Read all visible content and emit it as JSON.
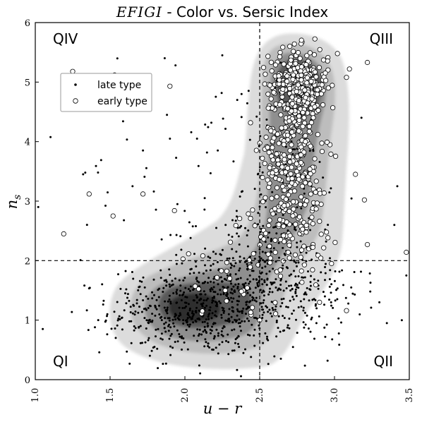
{
  "chart_data": {
    "type": "scatter",
    "title_italic": "EFIGI",
    "title_rest": " - Color vs. Sersic Index",
    "xlabel": "u − r",
    "ylabel": "n",
    "ylabel_sub": "s",
    "xlim": [
      1.0,
      3.5
    ],
    "ylim": [
      0,
      6
    ],
    "x_ticks": [
      "1.0",
      "1.5",
      "2.0",
      "2.5",
      "3.0",
      "3.5"
    ],
    "y_ticks": [
      "0",
      "1",
      "2",
      "3",
      "4",
      "5",
      "6"
    ],
    "reference_lines": {
      "x": 2.5,
      "y": 2.0
    },
    "quadrants": [
      {
        "label": "QIV",
        "position": "top-left"
      },
      {
        "label": "QIII",
        "position": "top-right"
      },
      {
        "label": "QI",
        "position": "bottom-left"
      },
      {
        "label": "QII",
        "position": "bottom-right"
      }
    ],
    "legend": {
      "placement": "upper-left",
      "entries": [
        "late type",
        "early type"
      ]
    },
    "density_levels": {
      "colors": [
        "#dcdcdc",
        "#bdbdbd",
        "#8f8f8f",
        "#5a5a5a",
        "#2e2e2e"
      ],
      "late_peak": [
        2.1,
        1.1
      ],
      "early_peak": [
        2.75,
        4.9
      ]
    },
    "series": [
      {
        "name": "late type",
        "marker": "dot",
        "color": "#000000",
        "clusters": [
          {
            "center": [
              2.1,
              1.15
            ],
            "spread": [
              0.3,
              0.38
            ],
            "count": 560
          },
          {
            "center": [
              2.45,
              1.9
            ],
            "spread": [
              0.2,
              0.45
            ],
            "count": 180
          },
          {
            "center": [
              2.75,
              1.5
            ],
            "spread": [
              0.22,
              0.45
            ],
            "count": 160
          },
          {
            "center": [
              2.7,
              3.4
            ],
            "spread": [
              0.12,
              1.1
            ],
            "count": 110
          },
          {
            "center": [
              2.2,
              2.5
            ],
            "spread": [
              0.55,
              1.4
            ],
            "count": 120
          }
        ],
        "points": [
          [
            1.02,
            2.9
          ],
          [
            1.05,
            0.85
          ],
          [
            1.32,
            3.45
          ],
          [
            1.55,
            5.1
          ],
          [
            1.65,
            3.25
          ],
          [
            1.72,
            3.85
          ],
          [
            1.88,
            4.45
          ],
          [
            1.9,
            4.05
          ],
          [
            1.95,
            2.95
          ],
          [
            2.25,
            5.45
          ],
          [
            2.22,
            3.85
          ],
          [
            2.35,
            4.7
          ],
          [
            3.18,
            4.4
          ],
          [
            3.4,
            2.6
          ],
          [
            3.45,
            1.0
          ],
          [
            3.48,
            1.75
          ],
          [
            3.3,
            1.3
          ],
          [
            3.35,
            0.95
          ],
          [
            3.42,
            3.25
          ]
        ]
      },
      {
        "name": "early type",
        "marker": "open-circle",
        "color": "#ffffff",
        "clusters": [
          {
            "center": [
              2.76,
              4.95
            ],
            "spread": [
              0.1,
              0.3
            ],
            "count": 300
          },
          {
            "center": [
              2.72,
              3.8
            ],
            "spread": [
              0.1,
              0.55
            ],
            "count": 230
          },
          {
            "center": [
              2.7,
              2.7
            ],
            "spread": [
              0.12,
              0.45
            ],
            "count": 120
          },
          {
            "center": [
              2.35,
              1.7
            ],
            "spread": [
              0.18,
              0.35
            ],
            "count": 28
          }
        ],
        "points": [
          [
            1.25,
            5.18
          ],
          [
            1.53,
            5.12
          ],
          [
            1.9,
            4.93
          ],
          [
            1.36,
            3.12
          ],
          [
            1.52,
            2.75
          ],
          [
            1.19,
            2.45
          ],
          [
            1.72,
            3.12
          ],
          [
            1.93,
            2.84
          ],
          [
            3.02,
            5.48
          ],
          [
            3.1,
            5.22
          ],
          [
            3.22,
            5.33
          ],
          [
            3.14,
            3.45
          ],
          [
            3.2,
            3.02
          ],
          [
            3.22,
            2.27
          ],
          [
            3.08,
            1.16
          ],
          [
            3.48,
            2.14
          ],
          [
            2.9,
            1.3
          ],
          [
            2.98,
            1.95
          ],
          [
            2.3,
            1.7
          ],
          [
            2.44,
            1.13
          ],
          [
            2.5,
            1.0
          ],
          [
            2.27,
            1.5
          ],
          [
            2.28,
            1.97
          ],
          [
            2.12,
            2.08
          ]
        ]
      }
    ]
  }
}
